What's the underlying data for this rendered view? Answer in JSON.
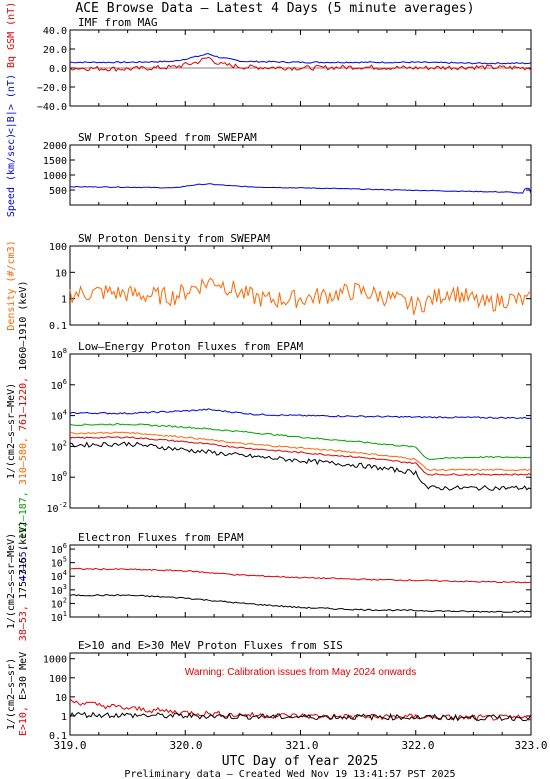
{
  "title": "ACE Browse Data  – Latest 4 Days (5 minute averages)",
  "xaxis": {
    "label": "UTC Day of Year 2025",
    "ticks": [
      "319.0",
      "320.0",
      "321.0",
      "322.0",
      "323.0"
    ],
    "range": [
      319.0,
      323.0
    ]
  },
  "footer": "Preliminary data – Created Wed Nov 19 13:41:57 PST 2025",
  "colors": {
    "blue": "#0000dd",
    "red": "#dd0000",
    "green": "#00a000",
    "orange": "#ff6600",
    "black": "#000000"
  },
  "panels": [
    {
      "title": "IMF from MAG",
      "ylabels": [
        {
          "text": "<|B|> (nT)",
          "color": "blue"
        },
        {
          "text": "Bq GSM (nT)",
          "color": "red"
        }
      ],
      "ticks": [
        "40.0",
        "20.0",
        "0.0",
        "−20.0",
        "−40.0"
      ]
    },
    {
      "title": "SW Proton Speed from SWEPAM",
      "ylabels": [
        {
          "text": "Speed (km/sec)",
          "color": "blue"
        }
      ],
      "ticks": [
        "2000",
        "1500",
        "1000",
        "500"
      ]
    },
    {
      "title": "SW Proton Density from SWEPAM",
      "ylabels": [
        {
          "text": "Density (#/cm3)",
          "color": "orange"
        }
      ],
      "ticks": [
        "100",
        "10",
        "1",
        "0.1"
      ]
    },
    {
      "title": "Low–Energy Proton Fluxes from EPAM",
      "ylabels": [
        {
          "text": "1/(cm2–s–sr–MeV)",
          "color": "black"
        }
      ],
      "channels": [
        {
          "text": "47–65,",
          "color": "blue"
        },
        {
          "text": "112–187,",
          "color": "green"
        },
        {
          "text": "310–580,",
          "color": "orange"
        },
        {
          "text": "761–1220,",
          "color": "red"
        },
        {
          "text": "1060–1910 (keV)",
          "color": "black"
        }
      ],
      "ticks": [
        "10^8",
        "10^6",
        "10^4",
        "10^2",
        "10^0",
        "10^-2"
      ]
    },
    {
      "title": "Electron Fluxes from EPAM",
      "ylabels": [
        {
          "text": "1/(cm2–s–sr–MeV)",
          "color": "black"
        }
      ],
      "channels": [
        {
          "text": "38–53,",
          "color": "red"
        },
        {
          "text": "175–315 (keV)",
          "color": "black"
        }
      ],
      "ticks": [
        "10^6",
        "10^5",
        "10^4",
        "10^3",
        "10^2",
        "10^1"
      ]
    },
    {
      "title": "E>10 and E>30 MeV Proton Fluxes from SIS",
      "ylabels": [
        {
          "text": "1/(cm2–s–sr)",
          "color": "black"
        }
      ],
      "channels": [
        {
          "text": "E>10,",
          "color": "red"
        },
        {
          "text": "E>30 MeV",
          "color": "black"
        }
      ],
      "warning": "Warning: Calibration issues from May 2024 onwards",
      "ticks": [
        "1000",
        "100",
        "10",
        "1",
        "0.1"
      ]
    }
  ],
  "chart_data": [
    {
      "type": "line",
      "title": "IMF from MAG",
      "ylim": [
        -40,
        40
      ],
      "xlim": [
        319,
        323
      ],
      "series": [
        {
          "name": "<|B|> (nT)",
          "color": "blue",
          "x": [
            319.0,
            319.5,
            319.9,
            320.1,
            320.2,
            320.3,
            320.5,
            321.0,
            321.5,
            322.0,
            322.5,
            323.0
          ],
          "y": [
            6,
            6,
            7,
            12,
            15,
            11,
            7,
            6,
            6,
            6,
            5,
            5
          ]
        },
        {
          "name": "Bq GSM (nT)",
          "color": "red",
          "x": [
            319.0,
            319.5,
            319.9,
            320.1,
            320.2,
            320.3,
            320.5,
            321.0,
            321.5,
            322.0,
            322.5,
            323.0
          ],
          "y": [
            0,
            -1,
            1,
            6,
            11,
            4,
            1,
            0,
            1,
            0,
            1,
            0
          ]
        }
      ]
    },
    {
      "type": "line",
      "title": "SW Proton Speed from SWEPAM",
      "ylim": [
        0,
        2000
      ],
      "xlim": [
        319,
        323
      ],
      "series": [
        {
          "name": "Speed (km/sec)",
          "color": "blue",
          "x": [
            319.0,
            319.3,
            319.6,
            319.9,
            320.1,
            320.2,
            320.4,
            320.6,
            321.0,
            321.3,
            321.6,
            322.0,
            322.4,
            322.8,
            322.93,
            322.95,
            322.98,
            323.0
          ],
          "y": [
            610,
            600,
            590,
            570,
            680,
            700,
            640,
            600,
            570,
            550,
            520,
            490,
            460,
            430,
            390,
            550,
            560,
            390
          ]
        }
      ]
    },
    {
      "type": "line",
      "title": "SW Proton Density from SWEPAM",
      "ylim": [
        0.1,
        100
      ],
      "yscale": "log",
      "xlim": [
        319,
        323
      ],
      "series": [
        {
          "name": "Density (#/cm3)",
          "color": "orange",
          "x": [
            319.0,
            319.3,
            319.6,
            319.9,
            320.1,
            320.25,
            320.4,
            320.5,
            320.7,
            321.0,
            321.3,
            321.5,
            321.8,
            322.0,
            322.3,
            322.6,
            322.8,
            322.95,
            323.0
          ],
          "y": [
            1.5,
            1.8,
            1.4,
            1.2,
            3,
            5,
            2.5,
            1.5,
            0.9,
            1,
            1.5,
            2,
            1,
            0.5,
            2,
            0.6,
            1,
            0.8,
            0.9
          ]
        }
      ]
    },
    {
      "type": "line",
      "title": "Low–Energy Proton Fluxes from EPAM",
      "ylim": [
        0.01,
        100000000
      ],
      "yscale": "log",
      "xlim": [
        319,
        323
      ],
      "series": [
        {
          "name": "47–65",
          "color": "blue",
          "x": [
            319.0,
            319.5,
            320.0,
            320.2,
            320.6,
            321.0,
            321.5,
            322.0,
            322.5,
            323.0
          ],
          "y": [
            15000,
            14000,
            20000,
            25000,
            12000,
            10000,
            9000,
            8000,
            7500,
            7000
          ]
        },
        {
          "name": "112–187",
          "color": "green",
          "x": [
            319.0,
            319.5,
            320.0,
            320.5,
            321.0,
            321.5,
            322.0,
            322.1,
            322.5,
            323.0
          ],
          "y": [
            2500,
            2800,
            1800,
            900,
            400,
            200,
            90,
            15,
            20,
            20
          ]
        },
        {
          "name": "310–580",
          "color": "orange",
          "x": [
            319.0,
            319.5,
            320.0,
            320.5,
            321.0,
            321.5,
            322.0,
            322.1,
            322.5,
            323.0
          ],
          "y": [
            700,
            800,
            400,
            150,
            80,
            40,
            15,
            3,
            3,
            3
          ]
        },
        {
          "name": "761–1220",
          "color": "red",
          "x": [
            319.0,
            319.5,
            320.0,
            320.5,
            321.0,
            321.5,
            322.0,
            322.1,
            322.5,
            323.0
          ],
          "y": [
            350,
            400,
            200,
            80,
            40,
            20,
            8,
            1.5,
            1.5,
            1.5
          ]
        },
        {
          "name": "1060–1910",
          "color": "black",
          "x": [
            319.0,
            319.5,
            320.0,
            320.5,
            321.0,
            321.5,
            322.0,
            322.1,
            322.5,
            323.0
          ],
          "y": [
            120,
            150,
            60,
            25,
            12,
            6,
            2,
            0.2,
            0.2,
            0.2
          ]
        }
      ]
    },
    {
      "type": "line",
      "title": "Electron Fluxes from EPAM",
      "ylim": [
        10,
        2000000
      ],
      "yscale": "log",
      "xlim": [
        319,
        323
      ],
      "series": [
        {
          "name": "38–53",
          "color": "red",
          "x": [
            319.0,
            319.5,
            320.0,
            320.5,
            321.0,
            321.5,
            322.0,
            322.5,
            323.0
          ],
          "y": [
            35000,
            32000,
            25000,
            12000,
            8000,
            6000,
            5000,
            4000,
            3500
          ]
        },
        {
          "name": "175–315",
          "color": "black",
          "x": [
            319.0,
            319.5,
            320.0,
            320.5,
            321.0,
            321.5,
            322.0,
            322.5,
            323.0
          ],
          "y": [
            400,
            400,
            250,
            100,
            50,
            35,
            30,
            25,
            25
          ]
        }
      ]
    },
    {
      "type": "line",
      "title": "E>10 and E>30 MeV Proton Fluxes from SIS",
      "ylim": [
        0.1,
        2000
      ],
      "yscale": "log",
      "xlim": [
        319,
        323
      ],
      "series": [
        {
          "name": "E>10",
          "color": "red",
          "x": [
            319.0,
            319.2,
            319.5,
            320.0,
            320.5,
            321.0,
            321.5,
            322.0,
            322.5,
            323.0
          ],
          "y": [
            6,
            4,
            2.5,
            1.5,
            1.1,
            1,
            0.9,
            0.9,
            0.8,
            0.8
          ]
        },
        {
          "name": "E>30 MeV",
          "color": "black",
          "x": [
            319.0,
            319.5,
            320.0,
            320.5,
            321.0,
            321.5,
            322.0,
            322.5,
            323.0
          ],
          "y": [
            1.2,
            1.1,
            1,
            0.95,
            0.9,
            0.9,
            0.85,
            0.8,
            0.8
          ]
        }
      ]
    }
  ]
}
